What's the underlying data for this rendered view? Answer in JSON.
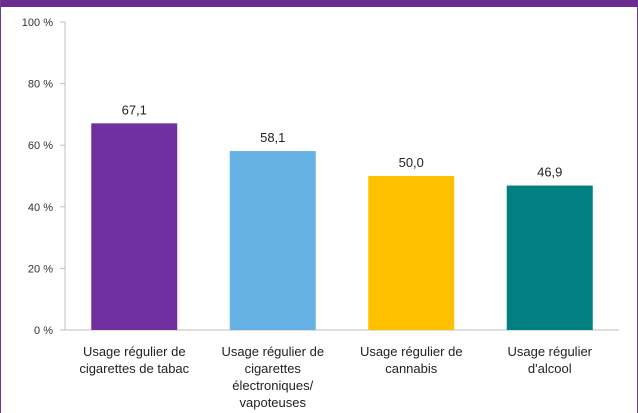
{
  "chart_data": {
    "type": "bar",
    "categories": [
      [
        "Usage régulier de",
        "cigarettes de tabac"
      ],
      [
        "Usage régulier de",
        "cigarettes",
        "électroniques/",
        "vapoteuses"
      ],
      [
        "Usage régulier de",
        "cannabis"
      ],
      [
        "Usage régulier",
        "d'alcool"
      ]
    ],
    "values": [
      67.1,
      58.1,
      50.0,
      46.9
    ],
    "value_labels": [
      "67,1",
      "58,1",
      "50,0",
      "46,9"
    ],
    "bar_colors": [
      "#7030a0",
      "#66b2e4",
      "#ffc000",
      "#008080"
    ],
    "y_ticks": [
      0,
      20,
      40,
      60,
      80,
      100
    ],
    "y_tick_labels": [
      "0 %",
      "20 %",
      "40 %",
      "60 %",
      "80 %",
      "100 %"
    ],
    "ylim": [
      0,
      100
    ],
    "title": "",
    "xlabel": "",
    "ylabel": "",
    "grid": false,
    "legend": "none"
  },
  "colors": {
    "top_band": "#6a2c91",
    "axis": "#bfbfbf"
  }
}
